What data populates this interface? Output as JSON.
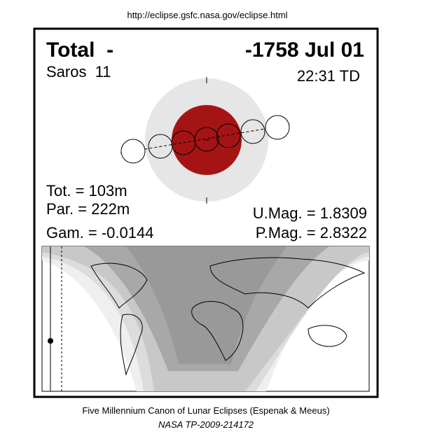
{
  "header": {
    "url": "http://eclipse.gsfc.nasa.gov/eclipse.html"
  },
  "panel": {
    "type": "Total  -",
    "date": "-1758 Jul 01",
    "saros": "Saros  11",
    "time": "22:31 TD",
    "duration_total": "Tot. = 103m",
    "duration_partial": "Par. = 222m",
    "gamma": "Gam. = -0.0144",
    "umbral_magnitude": "U.Mag. = 1.8309",
    "penumbral_magnitude": "P.Mag. = 2.8322"
  },
  "footer": {
    "canon": "Five Millennium Canon of Lunar Eclipses (Espenak & Meeus)",
    "publication": "NASA TP-2009-214172"
  }
}
